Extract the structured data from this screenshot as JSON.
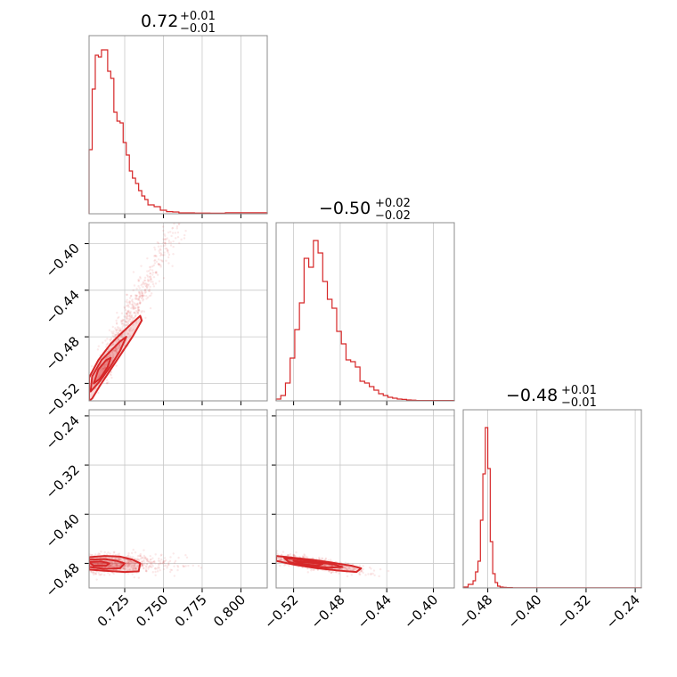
{
  "chart_data": {
    "type": "corner",
    "color": "#d62728",
    "parameters": [
      {
        "title": {
          "median": "0.72",
          "upper": "+0.01",
          "lower": "−0.01"
        }
      },
      {
        "title": {
          "median": "−0.50",
          "upper": "+0.02",
          "lower": "−0.02"
        }
      },
      {
        "title": {
          "median": "−0.48",
          "upper": "+0.01",
          "lower": "−0.01"
        }
      }
    ],
    "axes": {
      "p0": {
        "range": [
          0.702,
          0.817
        ],
        "ticks": [
          0.725,
          0.75,
          0.775,
          0.8
        ],
        "tick_labels": [
          "0.725",
          "0.750",
          "0.775",
          "0.800"
        ]
      },
      "p1": {
        "range": [
          -0.535,
          -0.382
        ],
        "ticks": [
          -0.52,
          -0.48,
          -0.44,
          -0.4
        ],
        "tick_labels": [
          "−0.52",
          "−0.48",
          "−0.44",
          "−0.40"
        ]
      },
      "p2": {
        "range": [
          -0.52,
          -0.23
        ],
        "ticks": [
          -0.48,
          -0.4,
          -0.32,
          -0.24
        ],
        "tick_labels": [
          "−0.48",
          "−0.40",
          "−0.32",
          "−0.24"
        ]
      },
      "p2_vertical_ticks": [
        -0.48,
        -0.4,
        -0.32,
        -0.24
      ],
      "p2_vertical_labels": [
        "−0.48",
        "−0.40",
        "−0.32",
        "−0.24"
      ]
    },
    "histograms": {
      "p0": {
        "bin_edges": [
          0.702,
          0.704,
          0.706,
          0.708,
          0.71,
          0.712,
          0.714,
          0.716,
          0.718,
          0.72,
          0.722,
          0.724,
          0.726,
          0.728,
          0.73,
          0.732,
          0.734,
          0.736,
          0.738,
          0.74,
          0.744,
          0.748,
          0.752,
          0.756,
          0.76,
          0.77,
          0.78,
          0.79,
          0.817
        ],
        "counts": [
          0.36,
          0.7,
          0.89,
          0.88,
          0.92,
          0.92,
          0.8,
          0.76,
          0.57,
          0.52,
          0.51,
          0.4,
          0.33,
          0.24,
          0.2,
          0.17,
          0.13,
          0.1,
          0.08,
          0.05,
          0.04,
          0.02,
          0.012,
          0.01,
          0.005,
          0.004,
          0.003,
          0.006
        ]
      },
      "p1": {
        "bin_edges": [
          -0.535,
          -0.531,
          -0.527,
          -0.523,
          -0.519,
          -0.515,
          -0.511,
          -0.507,
          -0.503,
          -0.499,
          -0.495,
          -0.491,
          -0.487,
          -0.483,
          -0.479,
          -0.475,
          -0.471,
          -0.467,
          -0.463,
          -0.459,
          -0.455,
          -0.451,
          -0.447,
          -0.443,
          -0.439,
          -0.435,
          -0.431,
          -0.427,
          -0.423,
          -0.419,
          -0.415,
          -0.382
        ],
        "counts": [
          0.01,
          0.03,
          0.1,
          0.24,
          0.4,
          0.55,
          0.8,
          0.75,
          0.9,
          0.83,
          0.67,
          0.57,
          0.52,
          0.39,
          0.32,
          0.23,
          0.22,
          0.19,
          0.11,
          0.1,
          0.08,
          0.06,
          0.04,
          0.03,
          0.02,
          0.015,
          0.01,
          0.008,
          0.005,
          0.004,
          0.002
        ]
      },
      "p2": {
        "bin_edges": [
          -0.52,
          -0.512,
          -0.504,
          -0.5,
          -0.496,
          -0.492,
          -0.488,
          -0.484,
          -0.48,
          -0.476,
          -0.472,
          -0.468,
          -0.464,
          -0.46,
          -0.455,
          -0.45,
          -0.44,
          -0.23
        ],
        "counts": [
          0.005,
          0.02,
          0.04,
          0.09,
          0.15,
          0.38,
          0.64,
          0.9,
          0.67,
          0.26,
          0.08,
          0.03,
          0.01,
          0.005,
          0.003,
          0.002,
          0.001
        ]
      }
    },
    "contours_2d": {
      "p1_vs_p0": {
        "outer": [
          [
            0.702,
            -0.535
          ],
          [
            0.702,
            -0.515
          ],
          [
            0.708,
            -0.5
          ],
          [
            0.716,
            -0.486
          ],
          [
            0.722,
            -0.478
          ],
          [
            0.73,
            -0.468
          ],
          [
            0.735,
            -0.462
          ],
          [
            0.736,
            -0.466
          ],
          [
            0.73,
            -0.48
          ],
          [
            0.723,
            -0.494
          ],
          [
            0.716,
            -0.508
          ],
          [
            0.709,
            -0.522
          ],
          [
            0.704,
            -0.533
          ]
        ],
        "middle": [
          [
            0.703,
            -0.527
          ],
          [
            0.704,
            -0.514
          ],
          [
            0.71,
            -0.5
          ],
          [
            0.716,
            -0.492
          ],
          [
            0.722,
            -0.484
          ],
          [
            0.726,
            -0.48
          ],
          [
            0.722,
            -0.492
          ],
          [
            0.716,
            -0.505
          ],
          [
            0.709,
            -0.518
          ]
        ],
        "inner": [
          [
            0.705,
            -0.52
          ],
          [
            0.708,
            -0.508
          ],
          [
            0.713,
            -0.5
          ],
          [
            0.716,
            -0.498
          ],
          [
            0.714,
            -0.506
          ],
          [
            0.709,
            -0.516
          ]
        ]
      },
      "p2_vs_p0": {
        "outer": [
          [
            0.702,
            -0.47
          ],
          [
            0.712,
            -0.468
          ],
          [
            0.722,
            -0.469
          ],
          [
            0.73,
            -0.474
          ],
          [
            0.735,
            -0.48
          ],
          [
            0.734,
            -0.493
          ],
          [
            0.725,
            -0.494
          ],
          [
            0.712,
            -0.492
          ],
          [
            0.702,
            -0.49
          ]
        ],
        "middle": [
          [
            0.702,
            -0.474
          ],
          [
            0.712,
            -0.473
          ],
          [
            0.72,
            -0.476
          ],
          [
            0.725,
            -0.48
          ],
          [
            0.722,
            -0.488
          ],
          [
            0.712,
            -0.489
          ],
          [
            0.702,
            -0.486
          ]
        ],
        "inner": [
          [
            0.702,
            -0.478
          ],
          [
            0.71,
            -0.477
          ],
          [
            0.715,
            -0.48
          ],
          [
            0.713,
            -0.484
          ],
          [
            0.705,
            -0.484
          ]
        ]
      },
      "p2_vs_p1": {
        "outer": [
          [
            -0.535,
            -0.468
          ],
          [
            -0.525,
            -0.47
          ],
          [
            -0.505,
            -0.474
          ],
          [
            -0.49,
            -0.478
          ],
          [
            -0.47,
            -0.484
          ],
          [
            -0.462,
            -0.488
          ],
          [
            -0.466,
            -0.494
          ],
          [
            -0.48,
            -0.492
          ],
          [
            -0.5,
            -0.488
          ],
          [
            -0.52,
            -0.482
          ],
          [
            -0.535,
            -0.476
          ]
        ],
        "middle": [
          [
            -0.528,
            -0.471
          ],
          [
            -0.515,
            -0.474
          ],
          [
            -0.5,
            -0.478
          ],
          [
            -0.485,
            -0.482
          ],
          [
            -0.478,
            -0.486
          ],
          [
            -0.49,
            -0.487
          ],
          [
            -0.508,
            -0.484
          ],
          [
            -0.524,
            -0.478
          ]
        ],
        "inner": [
          [
            -0.52,
            -0.476
          ],
          [
            -0.505,
            -0.479
          ],
          [
            -0.495,
            -0.481
          ],
          [
            -0.5,
            -0.484
          ],
          [
            -0.512,
            -0.481
          ]
        ]
      }
    },
    "grid": true
  }
}
